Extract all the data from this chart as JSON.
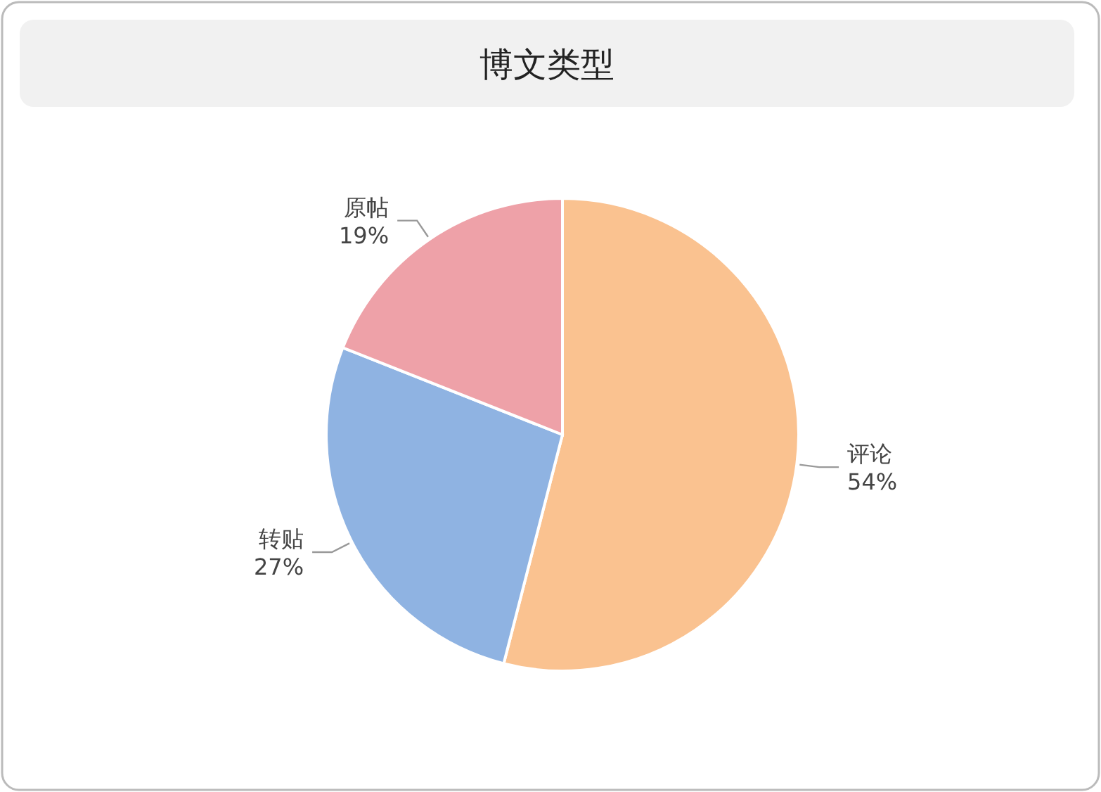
{
  "chart_data": {
    "type": "pie",
    "title": "博文类型",
    "categories": [
      "评论",
      "转贴",
      "原帖"
    ],
    "values": [
      54,
      27,
      19
    ],
    "colors": [
      "#fac290",
      "#8fb3e2",
      "#eea1a8"
    ],
    "value_labels": [
      "54%",
      "27%",
      "19%"
    ]
  }
}
